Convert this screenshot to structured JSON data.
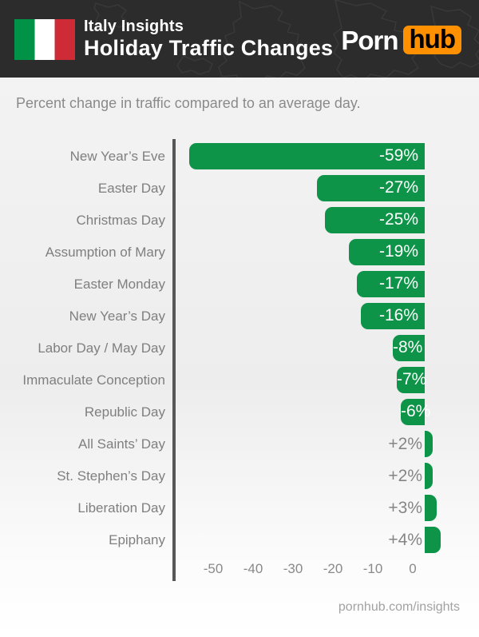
{
  "header": {
    "country_label": "Italy Insights",
    "title": "Holiday Traffic Changes",
    "logo": {
      "part1": "Porn",
      "part2": "hub"
    }
  },
  "subtitle": "Percent change in traffic compared to an average day.",
  "footer": {
    "url": "pornhub.com/insights"
  },
  "colors": {
    "bar_green": "#0e9448",
    "header_bg": "#2c2c2c",
    "logo_orange": "#ff9000",
    "flag_green": "#009246",
    "flag_red": "#ce2b37",
    "axis_line": "#57575a",
    "label_gray": "#7f7f7f",
    "value_white": "#ffffff"
  },
  "chart_data": {
    "type": "bar",
    "orientation": "horizontal",
    "title": "Holiday Traffic Changes",
    "subtitle": "Percent change in traffic compared to an average day.",
    "categories": [
      "New Year’s Eve",
      "Easter Day",
      "Christmas Day",
      "Assumption of Mary",
      "Easter Monday",
      "New Year’s Day",
      "Labor Day / May Day",
      "Immaculate Conception",
      "Republic Day",
      "All Saints’ Day",
      "St. Stephen’s Day",
      "Liberation Day",
      "Epiphany"
    ],
    "values": [
      -59,
      -27,
      -25,
      -19,
      -17,
      -16,
      -8,
      -7,
      -6,
      2,
      2,
      3,
      4
    ],
    "value_labels": [
      "-59%",
      "-27%",
      "-25%",
      "-19%",
      "-17%",
      "-16%",
      "-8%",
      "-7%",
      "-6%",
      "+2%",
      "+2%",
      "+3%",
      "+4%"
    ],
    "x_ticks": [
      "-50",
      "-40",
      "-30",
      "-20",
      "-10",
      "0"
    ],
    "x_tick_values": [
      -50,
      -40,
      -30,
      -20,
      -10,
      0
    ],
    "xlim": [
      -60,
      8
    ],
    "grid": false,
    "legend": null,
    "unit": "percent"
  }
}
